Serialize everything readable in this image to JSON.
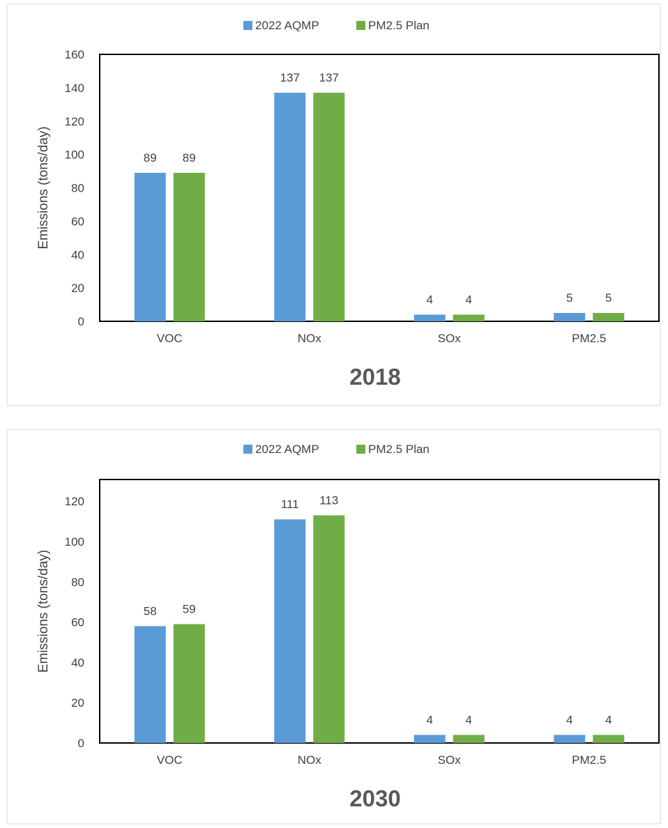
{
  "chart_data": [
    {
      "type": "bar",
      "title": "2018",
      "xlabel": "",
      "ylabel": "Emissions (tons/day)",
      "ylim": [
        0,
        160
      ],
      "yticks": [
        0,
        20,
        40,
        60,
        80,
        100,
        120,
        140,
        160
      ],
      "categories": [
        "VOC",
        "NOx",
        "SOx",
        "PM2.5"
      ],
      "legend_position": "top",
      "grid": false,
      "series": [
        {
          "name": "2022 AQMP",
          "color": "#5b9bd5",
          "values": [
            89,
            137,
            4,
            5
          ]
        },
        {
          "name": "PM2.5 Plan",
          "color": "#70ad47",
          "values": [
            89,
            137,
            4,
            5
          ]
        }
      ]
    },
    {
      "type": "bar",
      "title": "2030",
      "xlabel": "",
      "ylabel": "Emissions (tons/day)",
      "ylim": [
        0,
        130
      ],
      "yticks": [
        0,
        20,
        40,
        60,
        80,
        100,
        120
      ],
      "categories": [
        "VOC",
        "NOx",
        "SOx",
        "PM2.5"
      ],
      "legend_position": "top",
      "grid": false,
      "series": [
        {
          "name": "2022 AQMP",
          "color": "#5b9bd5",
          "values": [
            58,
            111,
            4,
            4
          ]
        },
        {
          "name": "PM2.5 Plan",
          "color": "#70ad47",
          "values": [
            59,
            113,
            4,
            4
          ]
        }
      ]
    }
  ]
}
